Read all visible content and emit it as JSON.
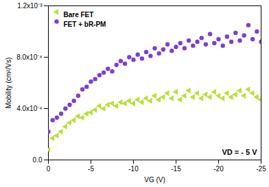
{
  "chart_data": {
    "type": "scatter",
    "x_label": "VG (V)",
    "y_label": "Mobility (cm²/Vs)",
    "annotations": [
      "VD = - 5 V"
    ],
    "x": [
      0,
      -0.5,
      -1,
      -1.5,
      -2,
      -2.5,
      -3,
      -3.5,
      -4,
      -4.5,
      -5,
      -5.5,
      -6,
      -6.5,
      -7,
      -7.5,
      -8,
      -8.5,
      -9,
      -9.5,
      -10,
      -10.5,
      -11,
      -11.5,
      -12,
      -12.5,
      -13,
      -13.5,
      -14,
      -14.5,
      -15,
      -15.5,
      -16,
      -16.5,
      -17,
      -17.5,
      -18,
      -18.5,
      -19,
      -19.5,
      -20,
      -20.5,
      -21,
      -21.5,
      -22,
      -22.5,
      -23,
      -23.5,
      -24,
      -24.5,
      -25
    ],
    "series": [
      {
        "name": "Bare FET",
        "color": "#b8e03a",
        "marker": "triangle-left",
        "values": [
          8e-05,
          0.00017,
          0.00019,
          0.00022,
          0.00026,
          0.00029,
          0.00031,
          0.00034,
          0.00033,
          0.00036,
          0.00037,
          0.00039,
          0.00042,
          0.0004,
          0.00043,
          0.00044,
          0.00042,
          0.00045,
          0.00044,
          0.00046,
          0.00044,
          0.00047,
          0.00045,
          0.00048,
          0.00046,
          0.0005,
          0.00047,
          0.00049,
          0.00052,
          0.00048,
          0.00053,
          0.00047,
          0.0005,
          0.00054,
          0.00049,
          0.00052,
          0.00048,
          0.00051,
          0.00049,
          0.00053,
          0.0005,
          0.00048,
          0.00052,
          0.00049,
          0.00051,
          0.00054,
          0.0005,
          0.00055,
          0.00052,
          0.00049,
          0.00047
        ]
      },
      {
        "name": "FET + bR-PM",
        "color": "#7d3fd1",
        "marker": "circle",
        "values": [
          0.00022,
          0.00031,
          0.00033,
          0.00036,
          0.0004,
          0.00043,
          0.00046,
          0.0005,
          0.00055,
          0.00057,
          0.00061,
          0.00063,
          0.00066,
          0.00068,
          0.00071,
          0.00069,
          0.00074,
          0.00077,
          0.00075,
          0.0008,
          0.00078,
          0.00082,
          0.00079,
          0.00084,
          0.00081,
          0.00087,
          0.00083,
          0.00086,
          0.0009,
          0.00085,
          0.00088,
          0.00091,
          0.00087,
          0.00093,
          0.00089,
          0.00092,
          0.00095,
          0.0009,
          0.00098,
          0.00091,
          0.00094,
          0.00089,
          0.00096,
          0.00092,
          0.00099,
          0.00093,
          0.00097,
          0.00105,
          0.00094,
          0.001,
          0.00092
        ]
      }
    ],
    "xlim": [
      0,
      -25
    ],
    "xticks": [
      0,
      -5,
      -10,
      -15,
      -20,
      -25
    ],
    "ylim": [
      0,
      0.0012
    ],
    "yticks": [
      {
        "value": 0,
        "label": "0.0"
      },
      {
        "value": 0.0004,
        "label": "4.0x10⁻⁴"
      },
      {
        "value": 0.0008,
        "label": "8.0x10⁻⁴"
      },
      {
        "value": 0.0012,
        "label": "1.2x10⁻³"
      }
    ],
    "legend": "top-left",
    "grid": false
  }
}
